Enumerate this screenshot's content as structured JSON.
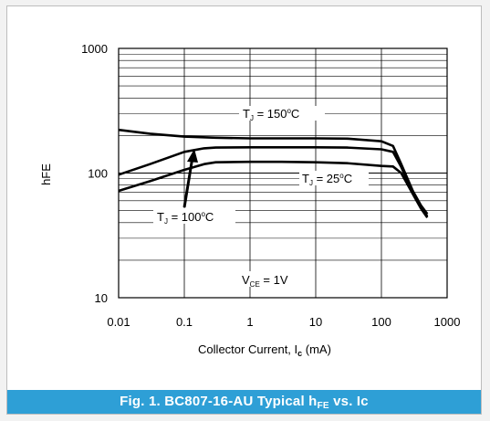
{
  "caption": {
    "prefix": "Fig. 1. BC807-16-AU Typical h",
    "sub": "FE",
    "suffix": " vs. Ic"
  },
  "chart_data": {
    "type": "line",
    "xscale": "log",
    "yscale": "log",
    "xlim": [
      0.01,
      1000
    ],
    "ylim": [
      10,
      1000
    ],
    "grid": true,
    "ylabel": "hFE",
    "xlabel_main": "Collector Current, I",
    "xlabel_sub": "c",
    "xlabel_unit": " (mA)",
    "x_ticks": [
      "0.01",
      "0.1",
      "1",
      "10",
      "100",
      "1000"
    ],
    "y_ticks": [
      "10",
      "100",
      "1000"
    ],
    "series": [
      {
        "name": "TJ = 150°C",
        "x": [
          0.01,
          0.03,
          0.1,
          0.3,
          1,
          3,
          10,
          30,
          100,
          150,
          200,
          300,
          400,
          500
        ],
        "y": [
          222,
          207,
          196,
          192,
          190,
          190,
          190,
          189,
          180,
          165,
          118,
          72,
          55,
          47
        ]
      },
      {
        "name": "TJ = 100°C",
        "x": [
          0.01,
          0.03,
          0.1,
          0.2,
          0.3,
          1,
          3,
          10,
          30,
          100,
          150,
          200,
          300,
          400,
          500
        ],
        "y": [
          97,
          118,
          148,
          158,
          160,
          161,
          161,
          161,
          160,
          155,
          148,
          112,
          70,
          53,
          45
        ]
      },
      {
        "name": "TJ = 25°C",
        "x": [
          0.01,
          0.03,
          0.1,
          0.2,
          0.3,
          1,
          3,
          10,
          30,
          100,
          150,
          200,
          300,
          400,
          500
        ],
        "y": [
          72,
          86,
          106,
          118,
          122,
          123,
          123,
          122,
          120,
          114,
          113,
          100,
          68,
          52,
          44
        ]
      }
    ],
    "annotations": {
      "t150": {
        "main": "T",
        "sub": "J",
        "rest": " = 150",
        "sup": "o",
        "unit": "C"
      },
      "t25": {
        "main": "T",
        "sub": "J",
        "rest": " = 25",
        "sup": "o",
        "unit": "C"
      },
      "t100": {
        "main": "T",
        "sub": "J",
        "rest": " = 100",
        "sup": "o",
        "unit": "C"
      },
      "vce": {
        "main": "V",
        "sub": "CE",
        "rest": " = 1V"
      }
    }
  }
}
